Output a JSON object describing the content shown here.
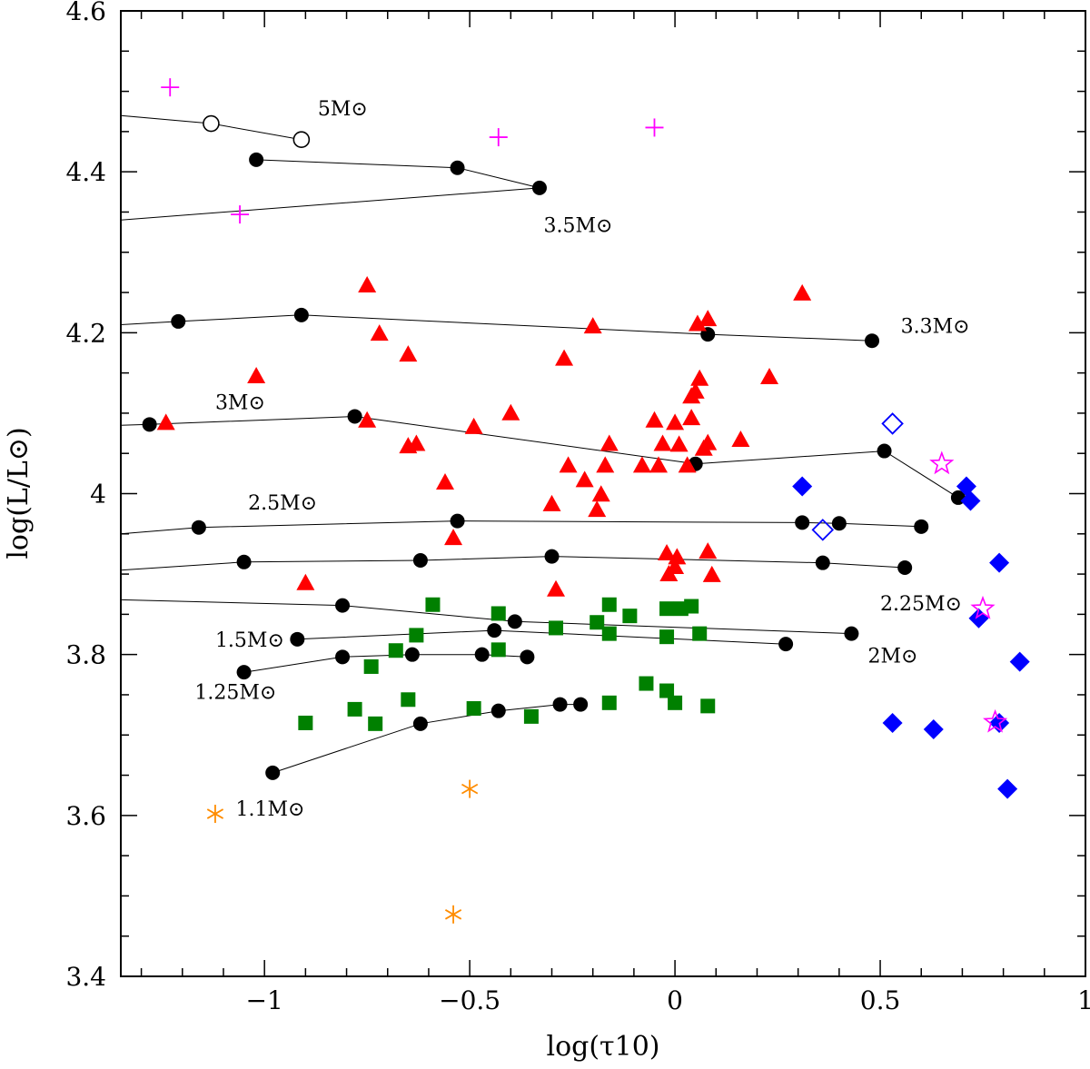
{
  "chart_data": {
    "type": "scatter",
    "title": "",
    "xlabel": "log(τ10)",
    "ylabel": "log(L/L⊙)",
    "xlim": [
      -1.35,
      1.0
    ],
    "ylim": [
      3.4,
      4.6
    ],
    "xticks": [
      -1,
      -0.5,
      0,
      0.5,
      1
    ],
    "xtick_labels": [
      "−1",
      "−0.5",
      "0",
      "0.5",
      "1"
    ],
    "yticks": [
      3.4,
      3.6,
      3.8,
      4,
      4.2,
      4.4,
      4.6
    ],
    "ytick_labels": [
      "3.4",
      "3.6",
      "3.8",
      "4",
      "4.2",
      "4.4",
      "4.6"
    ],
    "tracks": [
      {
        "name": "5M⊙",
        "label": "5M⊙",
        "label_at": [
          -0.87,
          4.47
        ],
        "line": [
          [
            -1.35,
            4.47
          ],
          [
            -1.13,
            4.46
          ],
          [
            -0.91,
            4.44
          ]
        ],
        "points": [
          [
            -1.13,
            4.46
          ],
          [
            -0.91,
            4.44
          ]
        ],
        "marker": "open-circle"
      },
      {
        "name": "3.5M⊙",
        "label": "3.5M⊙",
        "label_at": [
          -0.32,
          4.325
        ],
        "line": [
          [
            -1.35,
            4.34
          ],
          [
            -0.33,
            4.38
          ],
          [
            -0.53,
            4.405
          ],
          [
            -1.02,
            4.415
          ]
        ],
        "points": [
          [
            -1.02,
            4.415
          ],
          [
            -0.53,
            4.405
          ],
          [
            -0.33,
            4.38
          ]
        ],
        "marker": "circle"
      },
      {
        "name": "3.3M⊙",
        "label": "3.3M⊙",
        "label_at": [
          0.55,
          4.2
        ],
        "line": [
          [
            -1.35,
            4.21
          ],
          [
            -1.21,
            4.214
          ],
          [
            -0.91,
            4.222
          ],
          [
            0.08,
            4.198
          ],
          [
            0.48,
            4.19
          ]
        ],
        "points": [
          [
            -1.21,
            4.214
          ],
          [
            -0.91,
            4.222
          ],
          [
            0.08,
            4.198
          ],
          [
            0.48,
            4.19
          ]
        ],
        "marker": "circle"
      },
      {
        "name": "3M⊙",
        "label": "3M⊙",
        "label_at": [
          -1.12,
          4.105
        ],
        "line": [
          [
            -1.35,
            4.085
          ],
          [
            -1.28,
            4.086
          ],
          [
            -0.78,
            4.096
          ],
          [
            0.05,
            4.037
          ],
          [
            0.51,
            4.053
          ],
          [
            0.69,
            3.995
          ]
        ],
        "points": [
          [
            -1.28,
            4.086
          ],
          [
            -0.78,
            4.096
          ],
          [
            0.05,
            4.037
          ],
          [
            0.51,
            4.053
          ],
          [
            0.69,
            3.995
          ]
        ],
        "marker": "circle"
      },
      {
        "name": "2.5M⊙",
        "label": "2.5M⊙",
        "label_at": [
          -1.04,
          3.98
        ],
        "line": [
          [
            -1.35,
            3.95
          ],
          [
            -1.16,
            3.958
          ],
          [
            -0.53,
            3.966
          ],
          [
            0.31,
            3.964
          ],
          [
            0.4,
            3.963
          ],
          [
            0.6,
            3.959
          ]
        ],
        "points": [
          [
            -1.16,
            3.958
          ],
          [
            -0.53,
            3.966
          ],
          [
            0.31,
            3.964
          ],
          [
            0.4,
            3.963
          ],
          [
            0.6,
            3.959
          ]
        ],
        "marker": "circle"
      },
      {
        "name": "2.25M⊙",
        "label": "2.25M⊙",
        "label_at": [
          0.5,
          3.855
        ],
        "line": [
          [
            -1.35,
            3.905
          ],
          [
            -1.05,
            3.915
          ],
          [
            -0.62,
            3.917
          ],
          [
            -0.3,
            3.922
          ],
          [
            0.36,
            3.914
          ],
          [
            0.56,
            3.908
          ]
        ],
        "points": [
          [
            -1.05,
            3.915
          ],
          [
            -0.62,
            3.917
          ],
          [
            -0.3,
            3.922
          ],
          [
            0.36,
            3.914
          ],
          [
            0.56,
            3.908
          ]
        ],
        "marker": "circle"
      },
      {
        "name": "2M⊙",
        "label": "2M⊙",
        "label_at": [
          0.47,
          3.79
        ],
        "line": [
          [
            -1.35,
            3.868
          ],
          [
            -0.81,
            3.861
          ],
          [
            -0.39,
            3.841
          ],
          [
            0.43,
            3.826
          ]
        ],
        "points": [
          [
            -0.81,
            3.861
          ],
          [
            -0.39,
            3.841
          ],
          [
            0.43,
            3.826
          ]
        ],
        "marker": "circle"
      },
      {
        "name": "1.5M⊙",
        "label": "1.5M⊙",
        "label_at": [
          -1.12,
          3.81
        ],
        "line": [
          [
            -0.92,
            3.819
          ],
          [
            -0.44,
            3.83
          ],
          [
            0.27,
            3.813
          ]
        ],
        "points": [
          [
            -0.92,
            3.819
          ],
          [
            -0.44,
            3.83
          ],
          [
            0.27,
            3.813
          ]
        ],
        "marker": "circle"
      },
      {
        "name": "1.25M⊙",
        "label": "1.25M⊙",
        "label_at": [
          -1.17,
          3.745
        ],
        "line": [
          [
            -1.05,
            3.778
          ],
          [
            -0.81,
            3.797
          ],
          [
            -0.64,
            3.8
          ],
          [
            -0.47,
            3.8
          ],
          [
            -0.36,
            3.797
          ]
        ],
        "points": [
          [
            -1.05,
            3.778
          ],
          [
            -0.81,
            3.797
          ],
          [
            -0.64,
            3.8
          ],
          [
            -0.47,
            3.8
          ],
          [
            -0.36,
            3.797
          ]
        ],
        "marker": "circle"
      },
      {
        "name": "1.1M⊙",
        "label": "1.1M⊙",
        "label_at": [
          -1.07,
          3.6
        ],
        "line": [
          [
            -0.98,
            3.653
          ],
          [
            -0.62,
            3.714
          ],
          [
            -0.43,
            3.73
          ],
          [
            -0.28,
            3.738
          ],
          [
            -0.23,
            3.738
          ]
        ],
        "points": [
          [
            -0.98,
            3.653
          ],
          [
            -0.62,
            3.714
          ],
          [
            -0.43,
            3.73
          ],
          [
            -0.28,
            3.738
          ],
          [
            -0.23,
            3.738
          ]
        ],
        "marker": "circle"
      }
    ],
    "series": [
      {
        "name": "red-triangles",
        "marker": "filled-triangle",
        "color": "#ff0000",
        "points": [
          [
            -1.24,
            4.087
          ],
          [
            -1.02,
            4.145
          ],
          [
            -0.9,
            3.888
          ],
          [
            -0.75,
            4.258
          ],
          [
            -0.75,
            4.09
          ],
          [
            -0.72,
            4.198
          ],
          [
            -0.65,
            4.172
          ],
          [
            -0.65,
            4.058
          ],
          [
            -0.63,
            4.061
          ],
          [
            -0.56,
            4.013
          ],
          [
            -0.54,
            3.944
          ],
          [
            -0.49,
            4.082
          ],
          [
            -0.4,
            4.099
          ],
          [
            -0.3,
            3.986
          ],
          [
            -0.29,
            3.88
          ],
          [
            -0.27,
            4.167
          ],
          [
            -0.26,
            4.034
          ],
          [
            -0.22,
            4.016
          ],
          [
            -0.2,
            4.207
          ],
          [
            -0.19,
            3.979
          ],
          [
            -0.18,
            3.998
          ],
          [
            -0.17,
            4.034
          ],
          [
            -0.16,
            4.061
          ],
          [
            -0.08,
            4.034
          ],
          [
            -0.05,
            4.09
          ],
          [
            -0.04,
            4.034
          ],
          [
            -0.03,
            4.061
          ],
          [
            -0.02,
            3.925
          ],
          [
            -0.015,
            3.899
          ],
          [
            0.0,
            4.087
          ],
          [
            0.0,
            3.908
          ],
          [
            0.005,
            3.92
          ],
          [
            0.01,
            4.06
          ],
          [
            0.03,
            4.034
          ],
          [
            0.04,
            4.093
          ],
          [
            0.04,
            4.12
          ],
          [
            0.05,
            4.126
          ],
          [
            0.055,
            4.21
          ],
          [
            0.06,
            4.142
          ],
          [
            0.07,
            4.055
          ],
          [
            0.08,
            4.216
          ],
          [
            0.08,
            4.062
          ],
          [
            0.08,
            3.927
          ],
          [
            0.09,
            3.898
          ],
          [
            0.16,
            4.066
          ],
          [
            0.23,
            4.144
          ],
          [
            0.31,
            4.248
          ]
        ]
      },
      {
        "name": "green-squares",
        "marker": "filled-square",
        "color": "#008000",
        "points": [
          [
            -0.9,
            3.715
          ],
          [
            -0.78,
            3.732
          ],
          [
            -0.74,
            3.785
          ],
          [
            -0.73,
            3.714
          ],
          [
            -0.68,
            3.805
          ],
          [
            -0.65,
            3.744
          ],
          [
            -0.63,
            3.824
          ],
          [
            -0.59,
            3.862
          ],
          [
            -0.49,
            3.733
          ],
          [
            -0.43,
            3.851
          ],
          [
            -0.43,
            3.806
          ],
          [
            -0.35,
            3.723
          ],
          [
            -0.29,
            3.833
          ],
          [
            -0.19,
            3.84
          ],
          [
            -0.16,
            3.862
          ],
          [
            -0.16,
            3.826
          ],
          [
            -0.16,
            3.74
          ],
          [
            -0.11,
            3.848
          ],
          [
            -0.07,
            3.764
          ],
          [
            -0.02,
            3.857
          ],
          [
            -0.02,
            3.822
          ],
          [
            -0.02,
            3.755
          ],
          [
            0.0,
            3.74
          ],
          [
            0.015,
            3.857
          ],
          [
            0.04,
            3.86
          ],
          [
            0.06,
            3.826
          ],
          [
            0.08,
            3.736
          ]
        ]
      },
      {
        "name": "blue-filled-diamonds",
        "marker": "filled-diamond",
        "color": "#0000ff",
        "points": [
          [
            0.31,
            4.009
          ],
          [
            0.71,
            4.009
          ],
          [
            0.72,
            3.991
          ],
          [
            0.74,
            3.845
          ],
          [
            0.79,
            3.914
          ],
          [
            0.84,
            3.791
          ],
          [
            0.53,
            3.715
          ],
          [
            0.63,
            3.707
          ],
          [
            0.79,
            3.715
          ],
          [
            0.81,
            3.633
          ]
        ]
      },
      {
        "name": "blue-open-diamonds",
        "marker": "open-diamond",
        "color": "#0000ff",
        "points": [
          [
            0.53,
            4.087
          ],
          [
            0.36,
            3.955
          ]
        ]
      },
      {
        "name": "magenta-open-stars",
        "marker": "open-star",
        "color": "#ff00ff",
        "points": [
          [
            0.65,
            4.037
          ],
          [
            0.75,
            3.857
          ],
          [
            0.78,
            3.716
          ]
        ]
      },
      {
        "name": "magenta-plus",
        "marker": "plus",
        "color": "#ff00ff",
        "points": [
          [
            -1.23,
            4.505
          ],
          [
            -1.06,
            4.347
          ],
          [
            -0.43,
            4.443
          ],
          [
            -0.05,
            4.455
          ]
        ]
      },
      {
        "name": "orange-asterisks",
        "marker": "asterisk",
        "color": "#ff8c00",
        "points": [
          [
            -1.12,
            3.602
          ],
          [
            -0.5,
            3.633
          ],
          [
            -0.54,
            3.477
          ]
        ]
      }
    ]
  }
}
